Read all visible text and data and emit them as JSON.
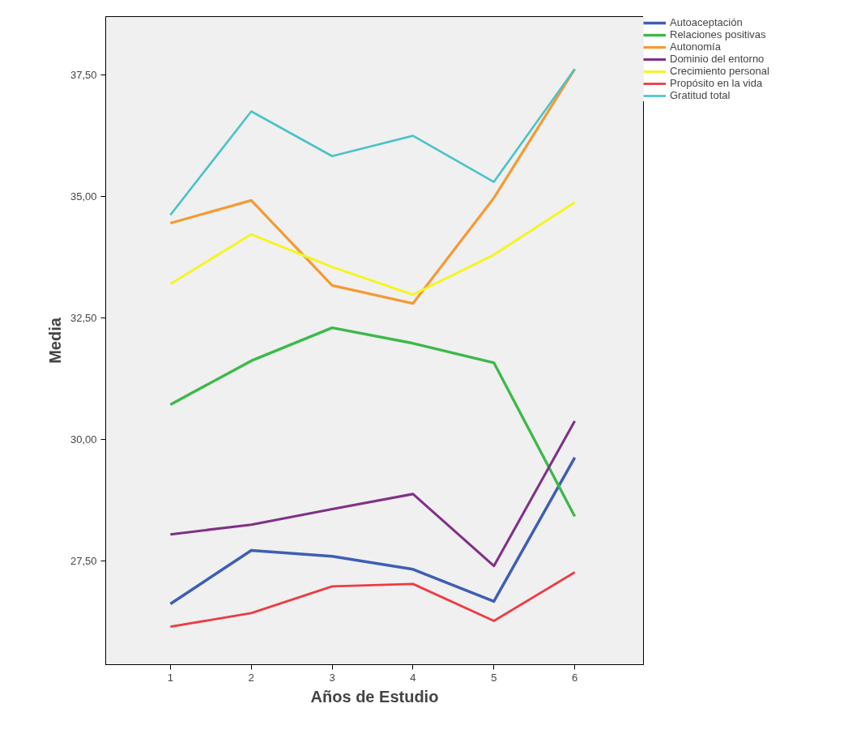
{
  "chart_data": {
    "type": "line",
    "xlabel": "Años de Estudio",
    "ylabel": "Media",
    "x": [
      1,
      2,
      3,
      4,
      5,
      6
    ],
    "xlim": [
      0.2,
      6.85
    ],
    "xticks": [
      1,
      2,
      3,
      4,
      5,
      6
    ],
    "ylim": [
      25.37,
      38.7
    ],
    "yticks": [
      {
        "value": 27.5,
        "label": "27,50"
      },
      {
        "value": 30,
        "label": "30,00"
      },
      {
        "value": 32.5,
        "label": "32,50"
      },
      {
        "value": 35,
        "label": "35,00"
      },
      {
        "value": 37.5,
        "label": "37,50"
      }
    ],
    "grid": false,
    "legend": "top right",
    "marker": "none",
    "line_style": "solid",
    "series": [
      {
        "name": "Autoaceptación",
        "color": "#3f5eb4",
        "values": [
          26.62,
          27.72,
          27.6,
          27.33,
          26.67,
          29.63
        ]
      },
      {
        "name": "Relaciones positivas",
        "color": "#3cb94a",
        "values": [
          30.72,
          31.62,
          32.3,
          31.98,
          31.58,
          28.42
        ]
      },
      {
        "name": "Autonomía",
        "color": "#f59a32",
        "values": [
          34.45,
          34.92,
          33.17,
          32.8,
          34.97,
          37.62
        ]
      },
      {
        "name": "Dominio del entorno",
        "color": "#7f3187",
        "values": [
          28.05,
          28.25,
          28.57,
          28.88,
          27.4,
          30.38
        ]
      },
      {
        "name": "Crecimiento personal",
        "color": "#f5f51f",
        "values": [
          33.2,
          34.22,
          33.55,
          32.98,
          33.8,
          34.88
        ]
      },
      {
        "name": "Propósito en la vida",
        "color": "#ee3b44",
        "values": [
          26.15,
          26.43,
          26.98,
          27.03,
          26.27,
          27.27
        ]
      },
      {
        "name": "Gratitud total",
        "color": "#4cc3c8",
        "values": [
          34.62,
          36.75,
          35.83,
          36.25,
          35.3,
          37.62
        ]
      }
    ]
  }
}
